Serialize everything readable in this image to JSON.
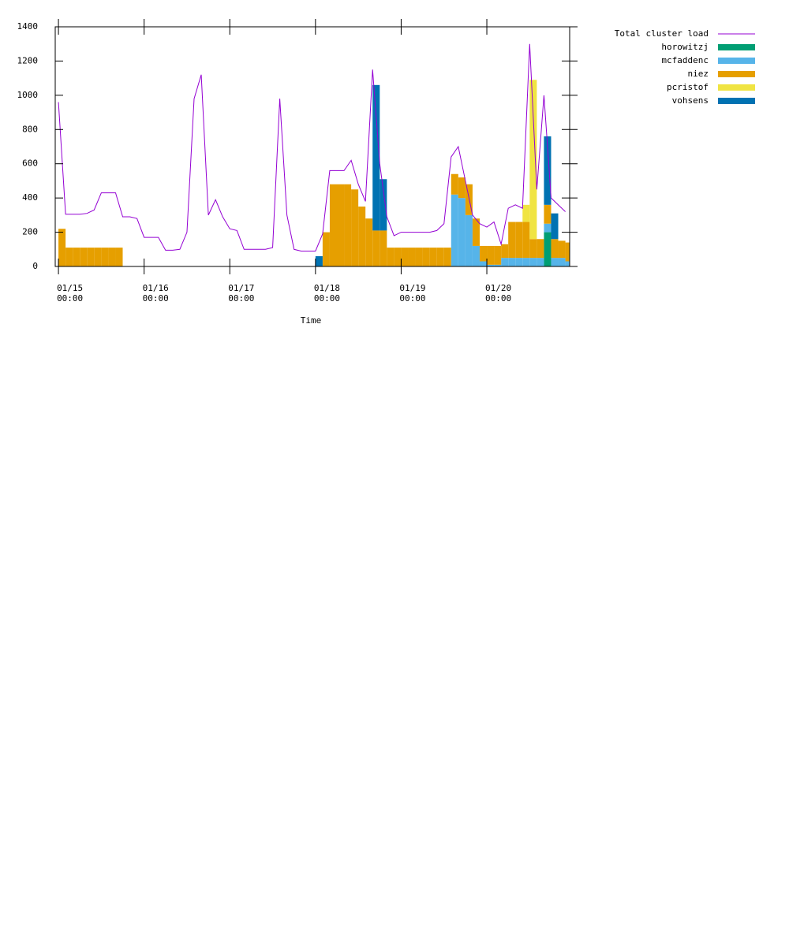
{
  "chart_data": {
    "type": "stacked-area",
    "xlabel": "Time",
    "x": [
      0,
      2,
      4,
      6,
      8,
      10,
      12,
      14,
      16,
      18,
      20,
      22,
      24,
      26,
      28,
      30,
      32,
      34,
      36,
      38,
      40,
      42,
      44,
      46,
      48,
      50,
      52,
      54,
      56,
      58,
      60,
      62,
      64,
      66,
      68,
      70,
      72,
      74,
      76,
      78,
      80,
      82,
      84,
      86,
      88,
      90,
      92,
      94,
      96,
      98,
      100,
      102,
      104,
      106,
      108,
      110,
      112,
      114,
      116,
      118,
      120,
      122,
      124,
      126,
      128,
      130,
      132,
      134,
      136,
      138,
      140,
      142
    ],
    "xlim": [
      -0.9,
      143.2
    ],
    "xticks": [
      {
        "value": 0,
        "label": "01/15\n00:00"
      },
      {
        "value": 24,
        "label": "01/16\n00:00"
      },
      {
        "value": 48,
        "label": "01/17\n00:00"
      },
      {
        "value": 72,
        "label": "01/18\n00:00"
      },
      {
        "value": 96,
        "label": "01/19\n00:00"
      },
      {
        "value": 120,
        "label": "01/20\n00:00"
      }
    ],
    "ylim": [
      0,
      1400
    ],
    "yticks": [
      0,
      200,
      400,
      600,
      800,
      1000,
      1200,
      1400
    ],
    "line": {
      "name": "Total cluster load",
      "color": "#9400d3",
      "values": [
        960,
        305,
        305,
        305,
        310,
        330,
        430,
        430,
        430,
        290,
        290,
        280,
        170,
        170,
        170,
        95,
        95,
        100,
        200,
        980,
        1120,
        300,
        390,
        290,
        220,
        210,
        100,
        100,
        100,
        100,
        110,
        980,
        300,
        100,
        90,
        90,
        90,
        190,
        560,
        560,
        560,
        620,
        480,
        380,
        1150,
        600,
        290,
        180,
        200,
        200,
        200,
        200,
        200,
        210,
        250,
        640,
        700,
        500,
        300,
        250,
        230,
        260,
        130,
        340,
        360,
        340,
        1300,
        450,
        1000,
        400,
        360,
        320
      ]
    },
    "series": [
      {
        "name": "horowitzj",
        "color": "#009e73",
        "values": [
          0,
          0,
          0,
          0,
          0,
          0,
          0,
          0,
          0,
          0,
          0,
          0,
          0,
          0,
          0,
          0,
          0,
          0,
          0,
          0,
          0,
          0,
          0,
          0,
          0,
          0,
          0,
          0,
          0,
          0,
          0,
          0,
          0,
          0,
          0,
          0,
          0,
          0,
          0,
          0,
          0,
          0,
          0,
          0,
          0,
          0,
          0,
          0,
          0,
          0,
          0,
          0,
          0,
          0,
          0,
          0,
          0,
          0,
          0,
          0,
          0,
          0,
          0,
          0,
          0,
          0,
          0,
          0,
          200,
          0,
          0,
          0
        ]
      },
      {
        "name": "mcfaddenc",
        "color": "#56b4e9",
        "values": [
          0,
          0,
          0,
          0,
          0,
          0,
          0,
          0,
          0,
          0,
          0,
          0,
          0,
          0,
          0,
          0,
          0,
          0,
          0,
          0,
          0,
          0,
          0,
          0,
          0,
          0,
          0,
          0,
          0,
          0,
          0,
          0,
          0,
          0,
          0,
          0,
          0,
          0,
          0,
          0,
          0,
          0,
          0,
          0,
          0,
          0,
          0,
          0,
          0,
          0,
          0,
          0,
          0,
          0,
          0,
          420,
          400,
          300,
          120,
          30,
          10,
          10,
          50,
          50,
          50,
          50,
          50,
          50,
          50,
          50,
          50,
          30
        ]
      },
      {
        "name": "niez",
        "color": "#e69f00",
        "values": [
          220,
          110,
          110,
          110,
          110,
          110,
          110,
          110,
          110,
          0,
          0,
          0,
          0,
          0,
          0,
          0,
          0,
          0,
          0,
          0,
          0,
          0,
          0,
          0,
          0,
          0,
          0,
          0,
          0,
          0,
          0,
          0,
          0,
          0,
          0,
          0,
          0,
          200,
          480,
          480,
          480,
          450,
          350,
          280,
          210,
          210,
          110,
          110,
          110,
          110,
          110,
          110,
          110,
          110,
          110,
          120,
          120,
          180,
          160,
          90,
          110,
          110,
          80,
          210,
          210,
          210,
          110,
          110,
          110,
          110,
          100,
          110
        ]
      },
      {
        "name": "pcristof",
        "color": "#f0e442",
        "values": [
          0,
          0,
          0,
          0,
          0,
          0,
          0,
          0,
          0,
          0,
          0,
          0,
          0,
          0,
          0,
          0,
          0,
          0,
          0,
          0,
          0,
          0,
          0,
          0,
          0,
          0,
          0,
          0,
          0,
          0,
          0,
          0,
          0,
          0,
          0,
          0,
          0,
          0,
          0,
          0,
          0,
          0,
          0,
          0,
          0,
          0,
          0,
          0,
          0,
          0,
          0,
          0,
          0,
          0,
          0,
          0,
          0,
          0,
          0,
          0,
          0,
          0,
          0,
          0,
          0,
          100,
          930,
          0,
          0,
          0,
          0,
          0
        ]
      },
      {
        "name": "vohsens",
        "color": "#0072b2",
        "values": [
          0,
          0,
          0,
          0,
          0,
          0,
          0,
          0,
          0,
          0,
          0,
          0,
          0,
          0,
          0,
          0,
          0,
          0,
          0,
          0,
          0,
          0,
          0,
          0,
          0,
          0,
          0,
          0,
          0,
          0,
          0,
          0,
          0,
          0,
          0,
          0,
          60,
          0,
          0,
          0,
          0,
          0,
          0,
          0,
          850,
          300,
          0,
          0,
          0,
          0,
          0,
          0,
          0,
          0,
          0,
          0,
          0,
          0,
          0,
          0,
          0,
          0,
          0,
          0,
          0,
          0,
          0,
          0,
          400,
          150,
          0,
          0
        ]
      }
    ]
  }
}
